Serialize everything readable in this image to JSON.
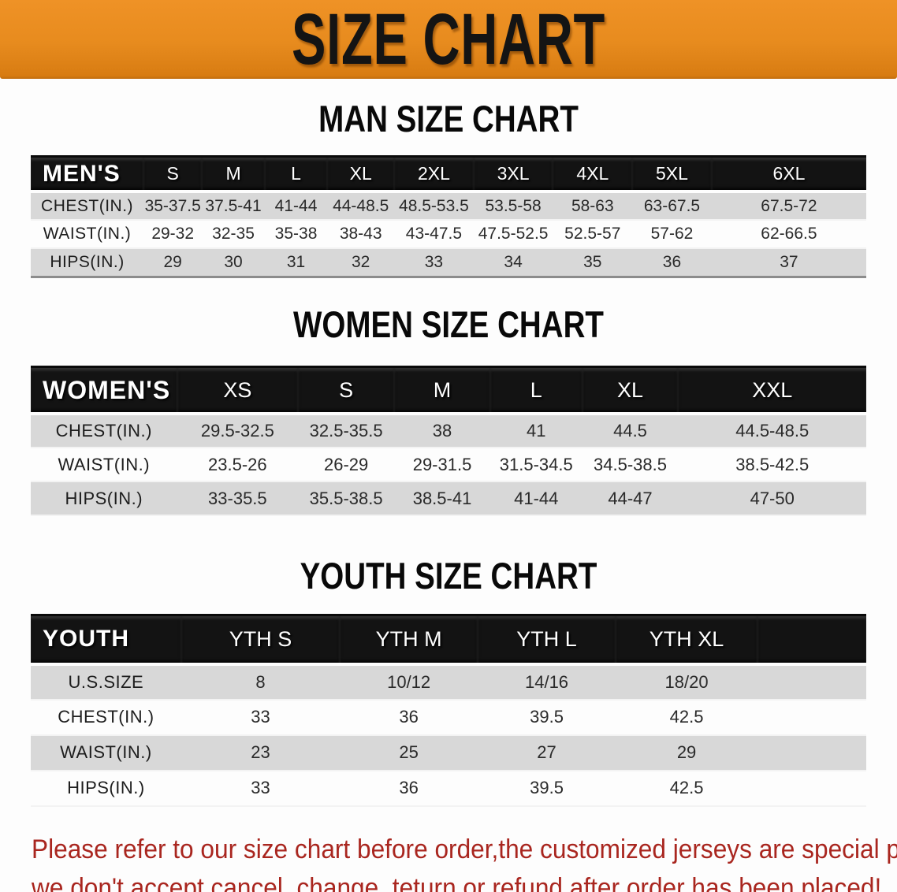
{
  "banner": {
    "title": "SIZE CHART",
    "bg_color": "#E78B1E",
    "text_color": "#141414"
  },
  "sections": [
    {
      "title": "MAN SIZE CHART",
      "header_label": "MEN'S",
      "columns": [
        "S",
        "M",
        "L",
        "XL",
        "2XL",
        "3XL",
        "4XL",
        "5XL",
        "6XL"
      ],
      "rows": [
        {
          "label": "CHEST(IN.)",
          "values": [
            "35-37.5",
            "37.5-41",
            "41-44",
            "44-48.5",
            "48.5-53.5",
            "53.5-58",
            "58-63",
            "63-67.5",
            "67.5-72"
          ]
        },
        {
          "label": "WAIST(IN.)",
          "values": [
            "29-32",
            "32-35",
            "35-38",
            "38-43",
            "43-47.5",
            "47.5-52.5",
            "52.5-57",
            "57-62",
            "62-66.5"
          ]
        },
        {
          "label": "HIPS(IN.)",
          "values": [
            "29",
            "30",
            "31",
            "32",
            "33",
            "34",
            "35",
            "36",
            "37"
          ]
        }
      ]
    },
    {
      "title": "WOMEN SIZE CHART",
      "header_label": "WOMEN'S",
      "columns": [
        "XS",
        "S",
        "M",
        "L",
        "XL",
        "XXL"
      ],
      "rows": [
        {
          "label": "CHEST(IN.)",
          "values": [
            "29.5-32.5",
            "32.5-35.5",
            "38",
            "41",
            "44.5",
            "44.5-48.5"
          ]
        },
        {
          "label": "WAIST(IN.)",
          "values": [
            "23.5-26",
            "26-29",
            "29-31.5",
            "31.5-34.5",
            "34.5-38.5",
            "38.5-42.5"
          ]
        },
        {
          "label": "HIPS(IN.)",
          "values": [
            "33-35.5",
            "35.5-38.5",
            "38.5-41",
            "41-44",
            "44-47",
            "47-50"
          ]
        }
      ]
    },
    {
      "title": "YOUTH SIZE CHART",
      "header_label": "YOUTH",
      "columns": [
        "YTH S",
        "YTH M",
        "YTH L",
        "YTH XL"
      ],
      "rows": [
        {
          "label": "U.S.SIZE",
          "values": [
            "8",
            "10/12",
            "14/16",
            "18/20"
          ]
        },
        {
          "label": "CHEST(IN.)",
          "values": [
            "33",
            "36",
            "39.5",
            "42.5"
          ]
        },
        {
          "label": "WAIST(IN.)",
          "values": [
            "23",
            "25",
            "27",
            "29"
          ]
        },
        {
          "label": "HIPS(IN.)",
          "values": [
            "33",
            "36",
            "39.5",
            "42.5"
          ]
        }
      ]
    }
  ],
  "footer": {
    "line1": "Please refer to our size chart before order,the customized jerseys are special products,",
    "line2": "we don't accept cancel, change, teturn or refund after order has been placed!",
    "text_color": "#A9261F"
  }
}
